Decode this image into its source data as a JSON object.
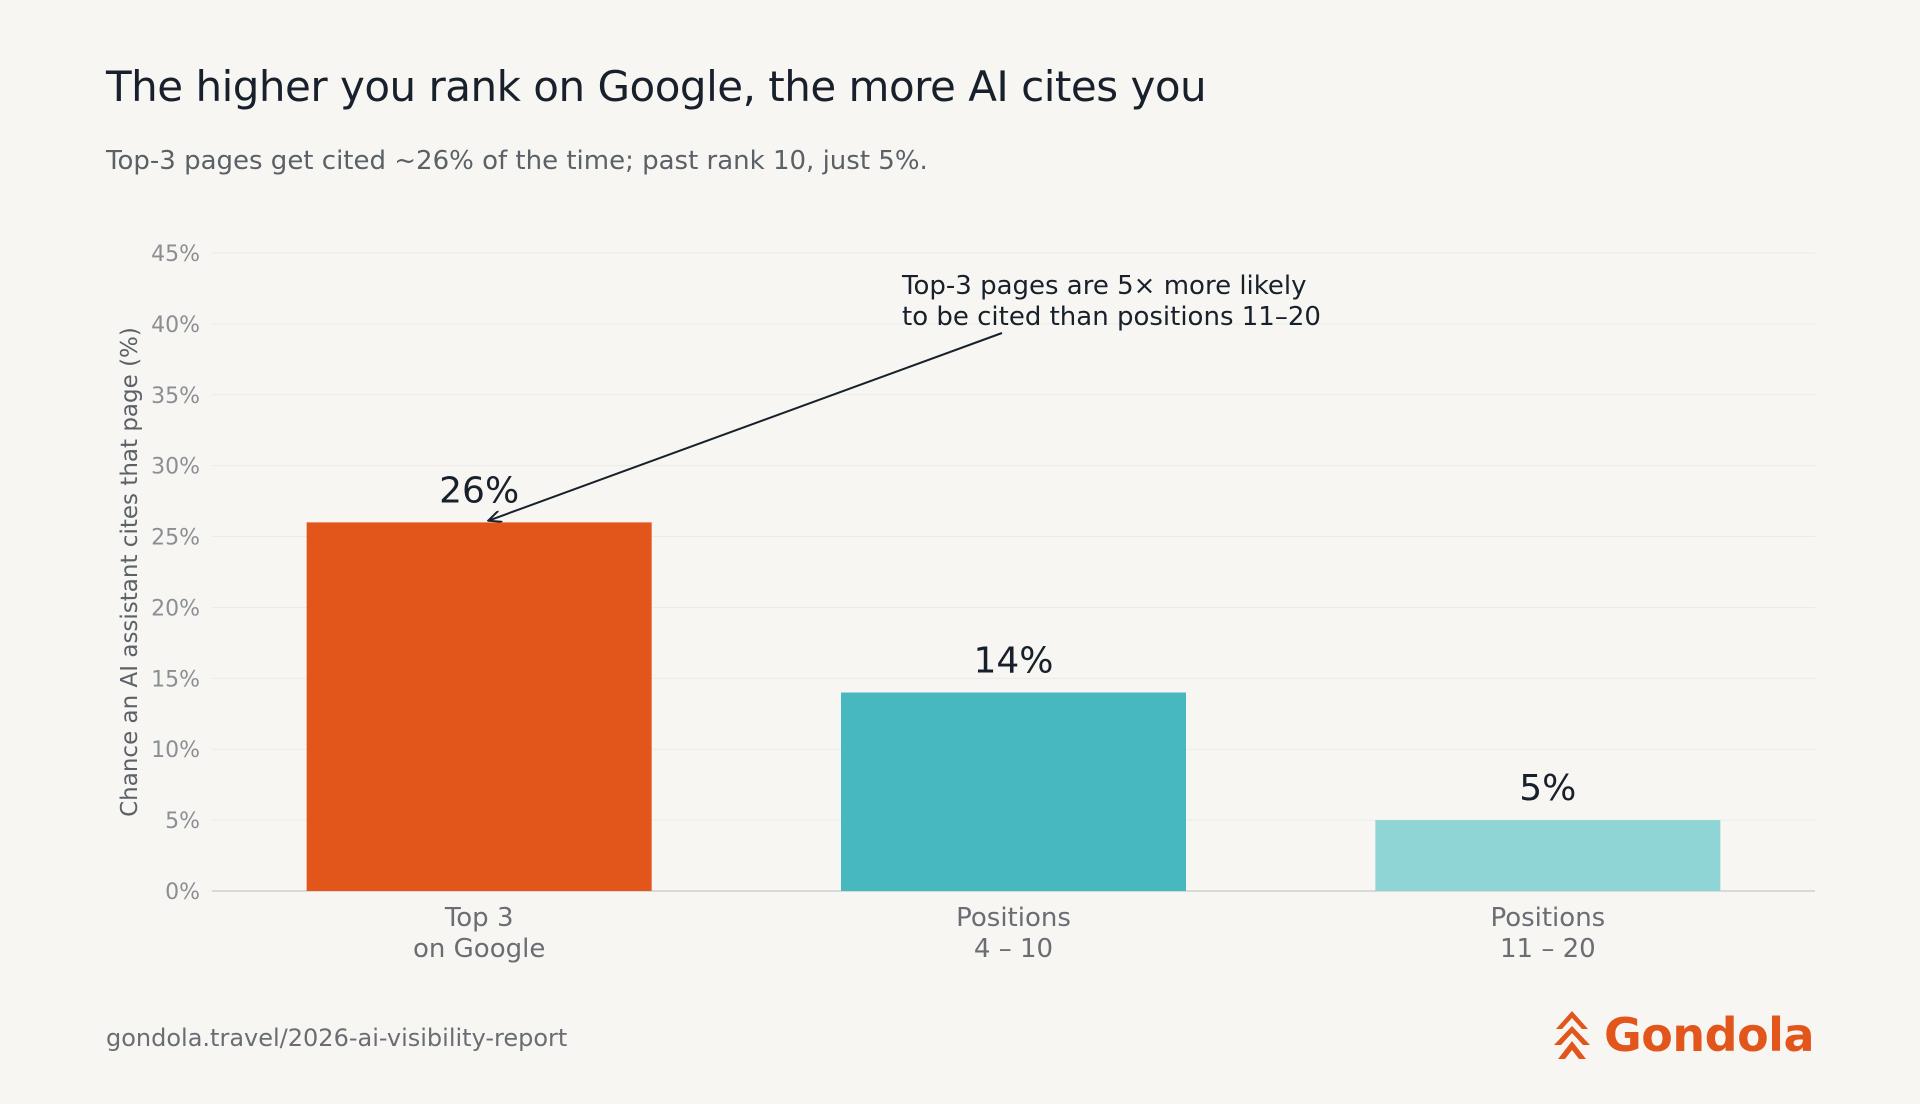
{
  "title": "The higher you rank on Google, the more AI cites you",
  "subtitle": "Top-3 pages get cited ~26% of the time; past rank 10, just 5%.",
  "source": "gondola.travel/2026-ai-visibility-report",
  "brand": {
    "name": "Gondola",
    "icon": "gondola-logo-icon",
    "color": "#e2561c"
  },
  "chart_data": {
    "type": "bar",
    "categories": [
      [
        "Top 3",
        "on Google"
      ],
      [
        "Positions",
        "4 – 10"
      ],
      [
        "Positions",
        "11 – 20"
      ]
    ],
    "values": [
      26,
      14,
      5
    ],
    "data_labels": [
      "26%",
      "14%",
      "5%"
    ],
    "colors": [
      "#e2561c",
      "#47b8be",
      "#90d5d5"
    ],
    "ylabel": "Chance an AI assistant cites that page (%)",
    "ylim": [
      0,
      45
    ],
    "yticks": [
      0,
      5,
      10,
      15,
      20,
      25,
      30,
      35,
      40,
      45
    ],
    "ytick_labels": [
      "0%",
      "5%",
      "10%",
      "15%",
      "20%",
      "25%",
      "30%",
      "35%",
      "40%",
      "45%"
    ],
    "grid": true,
    "annotation": {
      "lines": [
        "Top-3 pages are 5× more likely",
        "to be cited than positions 11–20"
      ],
      "points_to": "Top 3"
    }
  }
}
